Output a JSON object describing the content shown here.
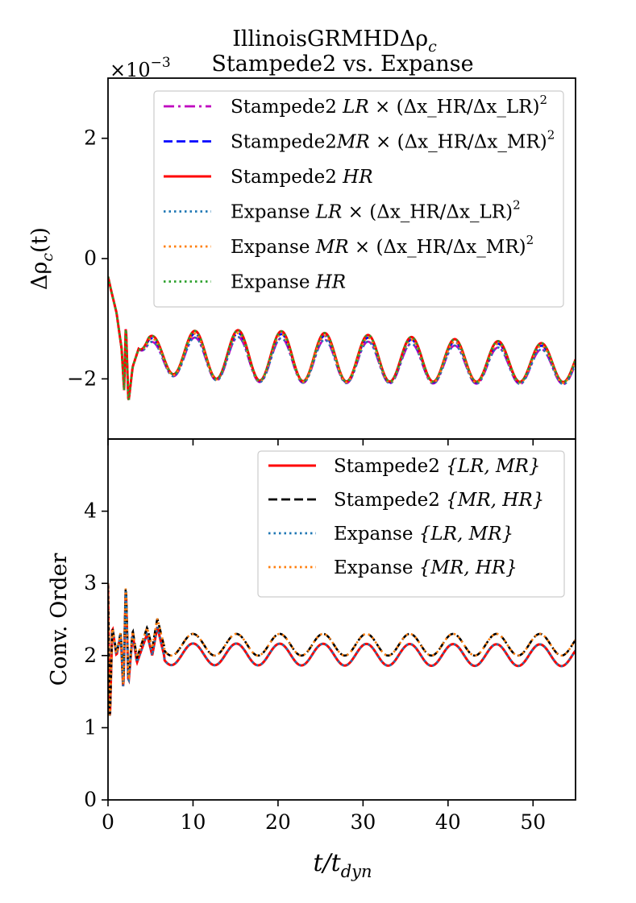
{
  "title": {
    "line1": "IllinoisGRMHDΔρ",
    "line1_sub": "c",
    "line2": "Stampede2 vs. Expanse"
  },
  "xlabel": {
    "main": "t/t",
    "sub": "dyn"
  },
  "chart_data": [
    {
      "type": "line",
      "panel": "top",
      "ylabel": "Δρ",
      "ylabel_sub": "c",
      "ylabel_tail": "(t)",
      "offset_label": {
        "base": "×10",
        "exp": "−3"
      },
      "xlim": [
        0,
        55
      ],
      "ylim": [
        -3.0,
        3.0
      ],
      "xticks": [
        0,
        10,
        20,
        30,
        40,
        50
      ],
      "yticks": [
        -2,
        0,
        2
      ],
      "ytick_labels": [
        "−2",
        "0",
        "2"
      ],
      "legend_position": "upper-right",
      "damping_tau": 38,
      "period": 5.1,
      "series": [
        {
          "name": "Stampede2 LR × (Δx_HR/Δx_LR)^2",
          "label": {
            "prefix": "Stampede2 ",
            "math": "LR",
            "tail": " × (Δx_HR/Δx_LR)",
            "sup": "2"
          },
          "color": "#bf00bf",
          "dash": "dashdot",
          "amp": 0.42,
          "mean": -1.62,
          "mean_slope": -0.0035,
          "amp_init": 0.55
        },
        {
          "name": "Stampede2MR × (Δx_HR/Δx_MR)^2",
          "label": {
            "prefix": "Stampede2",
            "math": "MR",
            "tail": " × (Δx_HR/Δx_MR)",
            "sup": "2"
          },
          "color": "#0000ff",
          "dash": "dashed",
          "amp": 0.45,
          "mean": -1.58,
          "mean_slope": -0.0035,
          "amp_init": 0.55
        },
        {
          "name": "Stampede2 HR",
          "label": {
            "prefix": "Stampede2 ",
            "math": "HR",
            "tail": "",
            "sup": ""
          },
          "color": "#ff0000",
          "dash": "solid",
          "amp": 0.47,
          "mean": -1.55,
          "mean_slope": -0.0035,
          "amp_init": 0.55
        },
        {
          "name": "Expanse LR × (Δx_HR/Δx_LR)^2",
          "label": {
            "prefix": "Expanse ",
            "math": "LR",
            "tail": " × (Δx_HR/Δx_LR)",
            "sup": "2"
          },
          "color": "#1f77b4",
          "dash": "dotted",
          "amp": 0.42,
          "mean": -1.62,
          "mean_slope": -0.0035,
          "amp_init": 0.55
        },
        {
          "name": "Expanse MR × (Δx_HR/Δx_MR)^2",
          "label": {
            "prefix": "Expanse ",
            "math": "MR",
            "tail": " × (Δx_HR/Δx_MR)",
            "sup": "2"
          },
          "color": "#ff7f0e",
          "dash": "dotted",
          "amp": 0.45,
          "mean": -1.58,
          "mean_slope": -0.0035,
          "amp_init": 0.55
        },
        {
          "name": "Expanse HR",
          "label": {
            "prefix": "Expanse ",
            "math": "HR",
            "tail": "",
            "sup": ""
          },
          "color": "#2ca02c",
          "dash": "dotted",
          "amp": 0.47,
          "mean": -1.55,
          "mean_slope": -0.0035,
          "amp_init": 0.55
        }
      ],
      "early_spikes": [
        {
          "t": 0.0,
          "v": -0.3
        },
        {
          "t": 0.4,
          "v": -0.55
        },
        {
          "t": 1.0,
          "v": -0.9
        },
        {
          "t": 1.6,
          "v": -1.5
        },
        {
          "t": 1.9,
          "v": -2.2
        },
        {
          "t": 2.1,
          "v": -1.05
        },
        {
          "t": 2.4,
          "v": -2.4
        },
        {
          "t": 2.9,
          "v": -1.8
        },
        {
          "t": 3.6,
          "v": -1.5
        }
      ]
    },
    {
      "type": "line",
      "panel": "bottom",
      "ylabel": "Conv. Order",
      "xlim": [
        0,
        55
      ],
      "ylim": [
        0,
        5
      ],
      "xticks": [
        0,
        10,
        20,
        30,
        40,
        50
      ],
      "yticks": [
        0,
        1,
        2,
        3,
        4
      ],
      "ytick_labels": [
        "0",
        "1",
        "2",
        "3",
        "4"
      ],
      "legend_position": "upper-right",
      "period": 5.1,
      "series": [
        {
          "name": "Stampede2 {LR, MR}",
          "label": {
            "prefix": "Stampede2 ",
            "math": "{LR, MR}"
          },
          "color": "#ff0000",
          "dash": "solid",
          "base": 2.02,
          "base_slope": -0.0003,
          "amp": 0.15
        },
        {
          "name": "Stampede2 {MR, HR}",
          "label": {
            "prefix": "Stampede2 ",
            "math": "{MR, HR}"
          },
          "color": "#000000",
          "dash": "dashed",
          "base": 2.15,
          "base_slope": 0.0,
          "amp": 0.15
        },
        {
          "name": "Expanse {LR, MR}",
          "label": {
            "prefix": "Expanse ",
            "math": "{LR, MR}"
          },
          "color": "#1f77b4",
          "dash": "dotted",
          "base": 2.02,
          "base_slope": -0.0003,
          "amp": 0.15
        },
        {
          "name": "Expanse {MR, HR}",
          "label": {
            "prefix": "Expanse ",
            "math": "{MR, HR}"
          },
          "color": "#ff7f0e",
          "dash": "dotted",
          "base": 2.15,
          "base_slope": 0.0,
          "amp": 0.15
        }
      ],
      "early_spikes": [
        {
          "t": 0.0,
          "v": 3.0
        },
        {
          "t": 0.2,
          "v": 1.0
        },
        {
          "t": 0.5,
          "v": 2.4
        },
        {
          "t": 1.0,
          "v": 2.0
        },
        {
          "t": 1.5,
          "v": 2.3
        },
        {
          "t": 1.8,
          "v": 1.5
        },
        {
          "t": 2.1,
          "v": 3.0
        },
        {
          "t": 2.4,
          "v": 1.6
        },
        {
          "t": 2.9,
          "v": 2.3
        },
        {
          "t": 3.4,
          "v": 1.9
        },
        {
          "t": 4.0,
          "v": 2.1
        },
        {
          "t": 4.6,
          "v": 2.3
        },
        {
          "t": 5.2,
          "v": 2.0
        },
        {
          "t": 5.8,
          "v": 2.4
        },
        {
          "t": 6.6,
          "v": 2.0
        }
      ]
    }
  ]
}
